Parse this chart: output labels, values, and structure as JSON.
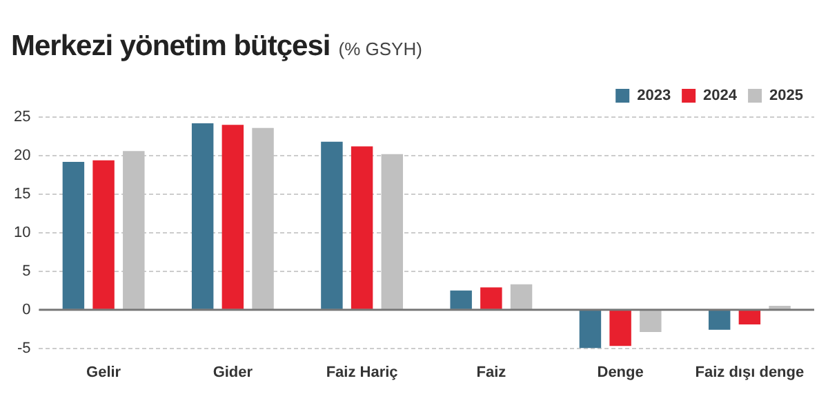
{
  "chart_data": {
    "type": "bar",
    "title": "Merkezi yönetim bütçesi",
    "subtitle": "(% GSYH)",
    "categories": [
      "Gelir",
      "Gider",
      "Faiz Hariç",
      "Faiz",
      "Denge",
      "Faiz dışı denge"
    ],
    "series": [
      {
        "name": "2023",
        "color": "#3d7592",
        "values": [
          19.2,
          24.2,
          21.8,
          2.5,
          -5.0,
          -2.6
        ]
      },
      {
        "name": "2024",
        "color": "#e8202e",
        "values": [
          19.4,
          24.0,
          21.2,
          2.9,
          -4.7,
          -1.9
        ]
      },
      {
        "name": "2025",
        "color": "#c0c0c0",
        "values": [
          20.6,
          23.6,
          20.2,
          3.3,
          -2.9,
          0.5
        ]
      }
    ],
    "ylim": [
      -5,
      25
    ],
    "yticks": [
      -5,
      0,
      5,
      10,
      15,
      20,
      25
    ],
    "ref_lines": [
      {
        "axis": "y",
        "value": 0,
        "color": "#777777"
      }
    ],
    "grid": "y",
    "legend": "top right"
  }
}
